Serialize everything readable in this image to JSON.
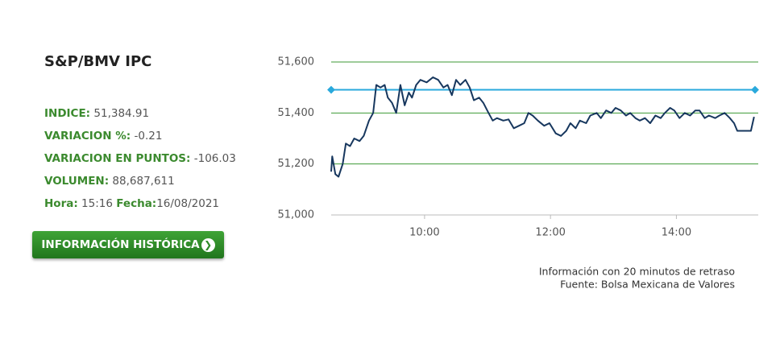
{
  "panel": {
    "title": "S&P/BMV IPC",
    "stats": [
      {
        "label": "INDICE:",
        "value": "51,384.91"
      },
      {
        "label": "VARIACION %:",
        "value": "-0.21"
      },
      {
        "label": "VARIACION EN PUNTOS:",
        "value": "-106.03"
      },
      {
        "label": "VOLUMEN:",
        "value": "88,687,611"
      }
    ],
    "time": {
      "label": "Hora:",
      "value": "15:16",
      "date_label": "Fecha:",
      "date_value": "16/08/2021"
    },
    "button": "INFORMACIÓN HISTÓRICA"
  },
  "chart_data": {
    "type": "line",
    "x": [
      511,
      512,
      515,
      518,
      522,
      525,
      529,
      533,
      538,
      542,
      547,
      551,
      554,
      558,
      562,
      565,
      569,
      573,
      577,
      581,
      585,
      588,
      592,
      596,
      602,
      608,
      613,
      618,
      622,
      626,
      630,
      634,
      639,
      643,
      647,
      652,
      656,
      661,
      665,
      669,
      675,
      680,
      685,
      690,
      695,
      699,
      703,
      708,
      714,
      719,
      725,
      730,
      735,
      739,
      744,
      748,
      754,
      758,
      764,
      768,
      773,
      778,
      782,
      787,
      792,
      796,
      801,
      805,
      810,
      815,
      820,
      825,
      829,
      834,
      838,
      843,
      848,
      853,
      858,
      862,
      867,
      871,
      877,
      881,
      886,
      891,
      895,
      898,
      906,
      911,
      914
    ],
    "series": [
      {
        "color": "#17375e",
        "values": [
          51170,
          51230,
          51160,
          51150,
          51200,
          51280,
          51270,
          51300,
          51290,
          51310,
          51370,
          51400,
          51510,
          51500,
          51510,
          51460,
          51440,
          51400,
          51510,
          51430,
          51480,
          51460,
          51510,
          51530,
          51520,
          51540,
          51530,
          51500,
          51510,
          51470,
          51530,
          51510,
          51530,
          51500,
          51450,
          51460,
          51440,
          51400,
          51370,
          51380,
          51370,
          51375,
          51340,
          51350,
          51360,
          51400,
          51390,
          51370,
          51350,
          51360,
          51320,
          51310,
          51330,
          51360,
          51340,
          51370,
          51360,
          51390,
          51400,
          51380,
          51410,
          51400,
          51420,
          51410,
          51390,
          51400,
          51380,
          51370,
          51380,
          51360,
          51390,
          51380,
          51400,
          51420,
          51410,
          51380,
          51400,
          51390,
          51410,
          51410,
          51380,
          51390,
          51380,
          51390,
          51400,
          51380,
          51360,
          51330,
          51330,
          51330,
          51385
        ]
      }
    ],
    "reference_line": {
      "value": 51490.94,
      "color": "#2aa9dc"
    },
    "xlim": [
      511,
      918
    ],
    "xticks": [
      {
        "value": 600,
        "label": "10:00"
      },
      {
        "value": 720,
        "label": "12:00"
      },
      {
        "value": 840,
        "label": "14:00"
      }
    ],
    "ylim": [
      51000,
      51600
    ],
    "yticks": [
      {
        "value": 51000,
        "label": "51,000"
      },
      {
        "value": 51200,
        "label": "51,200"
      },
      {
        "value": 51400,
        "label": "51,400"
      },
      {
        "value": 51600,
        "label": "51,600"
      }
    ],
    "grid": true,
    "grid_color": "#3d9a35",
    "notes": [
      "Información con 20 minutos de retraso",
      "Fuente: Bolsa Mexicana de Valores"
    ]
  }
}
